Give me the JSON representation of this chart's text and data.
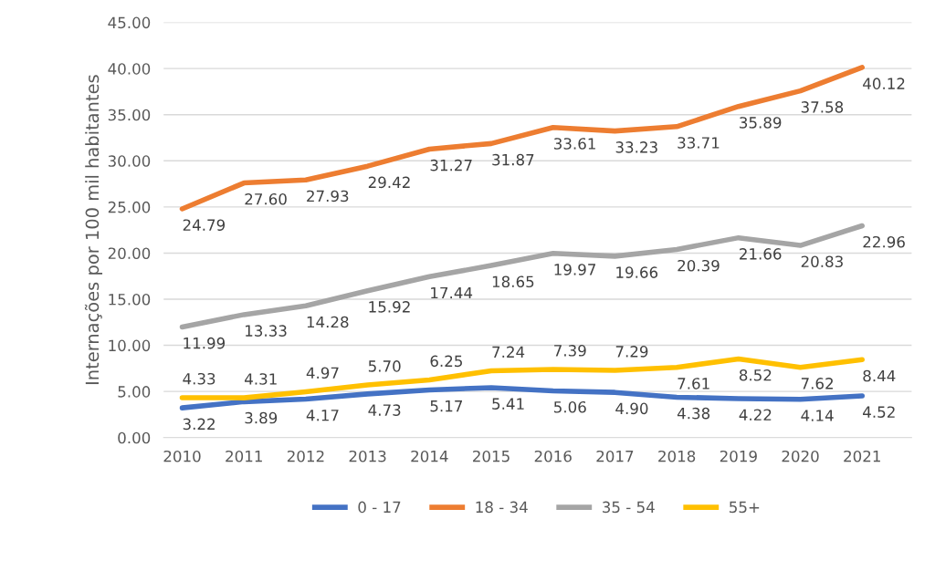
{
  "chart_data": {
    "type": "line",
    "ylabel": "Internações por 100 mil habitantes",
    "categories": [
      "2010",
      "2011",
      "2012",
      "2013",
      "2014",
      "2015",
      "2016",
      "2017",
      "2018",
      "2019",
      "2020",
      "2021"
    ],
    "series": [
      {
        "name": "0 - 17",
        "color": "#4472c4",
        "values": [
          3.22,
          3.89,
          4.17,
          4.73,
          5.17,
          5.41,
          5.06,
          4.9,
          4.38,
          4.22,
          4.14,
          4.52
        ],
        "value_labels": [
          "3.22",
          "3.89",
          "4.17",
          "4.73",
          "5.17",
          "5.41",
          "5.06",
          "4.90",
          "4.38",
          "4.22",
          "4.14",
          "4.52"
        ]
      },
      {
        "name": "18 - 34",
        "color": "#ed7d31",
        "values": [
          24.79,
          27.6,
          27.93,
          29.42,
          31.27,
          31.87,
          33.61,
          33.23,
          33.71,
          35.89,
          37.58,
          40.12
        ],
        "value_labels": [
          "24.79",
          "27.60",
          "27.93",
          "29.42",
          "31.27",
          "31.87",
          "33.61",
          "33.23",
          "33.71",
          "35.89",
          "37.58",
          "40.12"
        ]
      },
      {
        "name": "35 - 54",
        "color": "#a5a5a5",
        "values": [
          11.99,
          13.33,
          14.28,
          15.92,
          17.44,
          18.65,
          19.97,
          19.66,
          20.39,
          21.66,
          20.83,
          22.96
        ],
        "value_labels": [
          "11.99",
          "13.33",
          "14.28",
          "15.92",
          "17.44",
          "18.65",
          "19.97",
          "19.66",
          "20.39",
          "21.66",
          "20.83",
          "22.96"
        ]
      },
      {
        "name": "55+",
        "color": "#ffc000",
        "values": [
          4.33,
          4.31,
          4.97,
          5.7,
          6.25,
          7.24,
          7.39,
          7.29,
          7.61,
          8.52,
          7.62,
          8.44
        ],
        "value_labels": [
          "4.33",
          "4.31",
          "4.97",
          "5.70",
          "6.25",
          "7.24",
          "7.39",
          "7.29",
          "7.61",
          "8.52",
          "7.62",
          "8.44"
        ]
      }
    ],
    "ylim": [
      0,
      45
    ],
    "yticks": [
      {
        "value": 0,
        "label": "0.00"
      },
      {
        "value": 5,
        "label": "5.00"
      },
      {
        "value": 10,
        "label": "10.00"
      },
      {
        "value": 15,
        "label": "15.00"
      },
      {
        "value": 20,
        "label": "20.00"
      },
      {
        "value": 25,
        "label": "25.00"
      },
      {
        "value": 30,
        "label": "30.00"
      },
      {
        "value": 35,
        "label": "35.00"
      },
      {
        "value": 40,
        "label": "40.00"
      },
      {
        "value": 45,
        "label": "45.00"
      }
    ],
    "grid": "y",
    "legend": "bottom",
    "marker": "none",
    "line_style": "solid"
  }
}
